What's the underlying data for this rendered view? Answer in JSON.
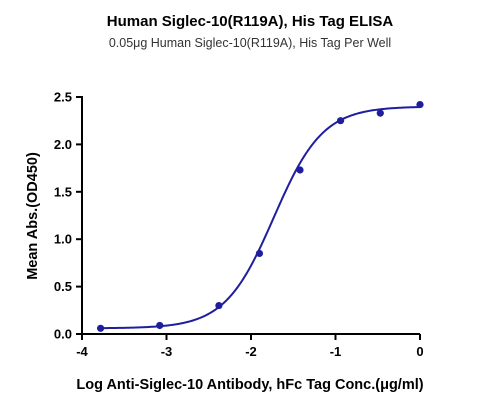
{
  "colors": {
    "series": "#1f1f9e",
    "axis": "#000000"
  },
  "chart_data": {
    "type": "scatter",
    "title": "Human Siglec-10(R119A), His Tag ELISA",
    "subtitle": "0.05μg Human Siglec-10(R119A), His Tag Per Well",
    "xlabel": "Log Anti-Siglec-10 Antibody, hFc Tag Conc.(μg/ml)",
    "ylabel": "Mean Abs.(OD450)",
    "xlim": [
      -4,
      0
    ],
    "ylim": [
      0,
      2.5
    ],
    "x_ticks": [
      "-4",
      "-3",
      "-2",
      "-1",
      "0"
    ],
    "y_ticks": [
      "0.0",
      "0.5",
      "1.0",
      "1.5",
      "2.0",
      "2.5"
    ],
    "x_tick_values": [
      -4,
      -3,
      -2,
      -1,
      0
    ],
    "y_tick_values": [
      0,
      0.5,
      1.0,
      1.5,
      2.0,
      2.5
    ],
    "grid": false,
    "series": [
      {
        "x": [
          -3.78,
          -3.08,
          -2.38,
          -1.9,
          -1.42,
          -0.94,
          -0.47,
          0.0
        ],
        "y": [
          0.06,
          0.09,
          0.3,
          0.85,
          1.73,
          2.25,
          2.33,
          2.42
        ]
      }
    ],
    "fit_curve": {
      "type": "4PL",
      "bottom": 0.06,
      "top": 2.4,
      "log_ec50": -1.73,
      "hill": 1.5
    }
  }
}
